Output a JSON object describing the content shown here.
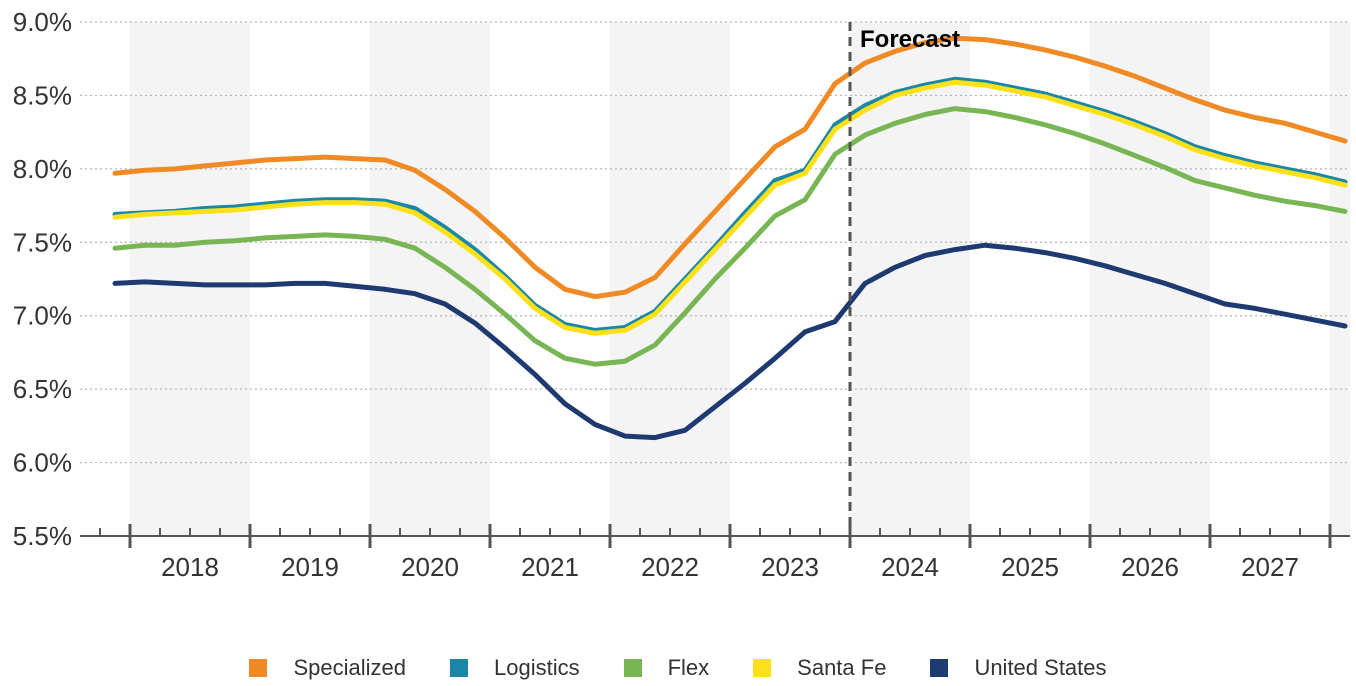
{
  "chart_data": {
    "type": "line",
    "x": [
      "2017Q3",
      "2017Q4",
      "2018Q1",
      "2018Q2",
      "2018Q3",
      "2018Q4",
      "2019Q1",
      "2019Q2",
      "2019Q3",
      "2019Q4",
      "2020Q1",
      "2020Q2",
      "2020Q3",
      "2020Q4",
      "2021Q1",
      "2021Q2",
      "2021Q3",
      "2021Q4",
      "2022Q1",
      "2022Q2",
      "2022Q3",
      "2022Q4",
      "2023Q1",
      "2023Q2",
      "2023Q3",
      "2023Q4",
      "2024Q1",
      "2024Q2",
      "2024Q3",
      "2024Q4",
      "2025Q1",
      "2025Q2",
      "2025Q3",
      "2025Q4",
      "2026Q1",
      "2026Q2",
      "2026Q3",
      "2026Q4",
      "2027Q1",
      "2027Q2",
      "2027Q3",
      "2027Q4"
    ],
    "year_labels": [
      "2018",
      "2019",
      "2020",
      "2021",
      "2022",
      "2023",
      "2024",
      "2025",
      "2026",
      "2027"
    ],
    "y_tick_labels": [
      "5.5%",
      "6.0%",
      "6.5%",
      "7.0%",
      "7.5%",
      "8.0%",
      "8.5%",
      "9.0%"
    ],
    "ylim": [
      5.5,
      9.0
    ],
    "ytick_step": 0.5,
    "grid": "horizontal-dotted",
    "alternating_year_bands": true,
    "forecast_annotation": {
      "label": "Forecast",
      "x": "2023Q4"
    },
    "legend_position": "bottom",
    "series": [
      {
        "name": "Specialized",
        "color": "#F08A24",
        "values": [
          7.97,
          7.99,
          8.0,
          8.02,
          8.04,
          8.06,
          8.07,
          8.08,
          8.07,
          8.06,
          7.99,
          7.86,
          7.71,
          7.53,
          7.33,
          7.18,
          7.13,
          7.16,
          7.26,
          7.49,
          7.71,
          7.93,
          8.15,
          8.27,
          8.58,
          8.72,
          8.8,
          8.86,
          8.89,
          8.88,
          8.85,
          8.81,
          8.76,
          8.7,
          8.63,
          8.55,
          8.47,
          8.4,
          8.35,
          8.31,
          8.25,
          8.19
        ]
      },
      {
        "name": "Logistics",
        "color": "#1B87A6",
        "values": [
          7.69,
          7.7,
          7.71,
          7.73,
          7.74,
          7.76,
          7.78,
          7.79,
          7.79,
          7.78,
          7.73,
          7.6,
          7.45,
          7.27,
          7.07,
          6.94,
          6.9,
          6.92,
          7.03,
          7.25,
          7.47,
          7.7,
          7.92,
          7.99,
          8.3,
          8.43,
          8.52,
          8.57,
          8.61,
          8.59,
          8.55,
          8.51,
          8.45,
          8.39,
          8.32,
          8.24,
          8.15,
          8.09,
          8.04,
          8.0,
          7.96,
          7.91
        ]
      },
      {
        "name": "Santa Fe",
        "color": "#FBE01A",
        "values": [
          7.67,
          7.69,
          7.7,
          7.71,
          7.72,
          7.74,
          7.76,
          7.77,
          7.77,
          7.76,
          7.7,
          7.57,
          7.42,
          7.25,
          7.05,
          6.92,
          6.88,
          6.9,
          7.01,
          7.23,
          7.45,
          7.67,
          7.89,
          7.97,
          8.27,
          8.4,
          8.5,
          8.55,
          8.59,
          8.57,
          8.53,
          8.49,
          8.43,
          8.37,
          8.3,
          8.22,
          8.13,
          8.07,
          8.02,
          7.98,
          7.94,
          7.89
        ]
      },
      {
        "name": "Flex",
        "color": "#78B653",
        "values": [
          7.46,
          7.48,
          7.48,
          7.5,
          7.51,
          7.53,
          7.54,
          7.55,
          7.54,
          7.52,
          7.46,
          7.33,
          7.18,
          7.01,
          6.83,
          6.71,
          6.67,
          6.69,
          6.8,
          7.02,
          7.25,
          7.46,
          7.68,
          7.79,
          8.1,
          8.23,
          8.31,
          8.37,
          8.41,
          8.39,
          8.35,
          8.3,
          8.24,
          8.17,
          8.09,
          8.01,
          7.92,
          7.87,
          7.82,
          7.78,
          7.75,
          7.71
        ]
      },
      {
        "name": "United States",
        "color": "#1F3A70",
        "values": [
          7.22,
          7.23,
          7.22,
          7.21,
          7.21,
          7.21,
          7.22,
          7.22,
          7.2,
          7.18,
          7.15,
          7.08,
          6.95,
          6.78,
          6.6,
          6.4,
          6.26,
          6.18,
          6.17,
          6.22,
          6.38,
          6.54,
          6.71,
          6.89,
          6.96,
          7.22,
          7.33,
          7.41,
          7.45,
          7.48,
          7.46,
          7.43,
          7.39,
          7.34,
          7.28,
          7.22,
          7.15,
          7.08,
          7.05,
          7.01,
          6.97,
          6.93
        ]
      }
    ]
  },
  "legend": [
    {
      "label": "Specialized",
      "color": "#F08A24"
    },
    {
      "label": "Logistics",
      "color": "#1B87A6"
    },
    {
      "label": "Flex",
      "color": "#78B653"
    },
    {
      "label": "Santa Fe",
      "color": "#FBE01A"
    },
    {
      "label": "United States",
      "color": "#1F3A70"
    }
  ]
}
